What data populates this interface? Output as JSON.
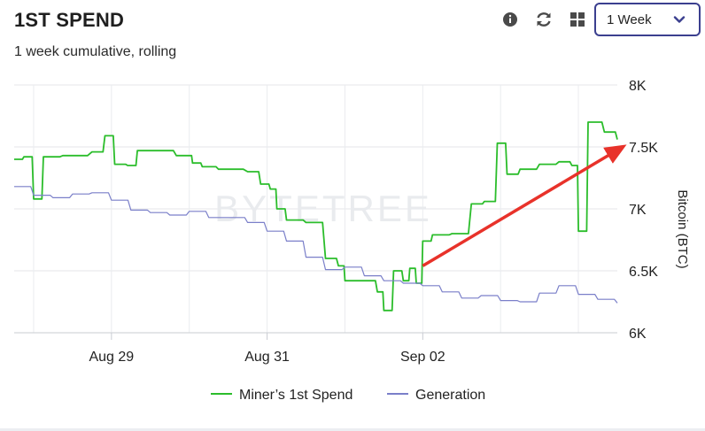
{
  "header": {
    "title": "1ST SPEND",
    "subtitle": "1 week cumulative, rolling",
    "range_select": {
      "value": "1 Week"
    },
    "icons": [
      "info-icon",
      "refresh-icon",
      "grid-icon",
      "chevron-down-icon"
    ],
    "accent_color": "#3b3f8f"
  },
  "watermark": "BYTETREE",
  "chart_data": {
    "type": "line",
    "x_ticks": [
      "Aug 29",
      "Aug 31",
      "Sep 02"
    ],
    "x_range": [
      "2023-08-27T18:00",
      "2023-09-04T12:00"
    ],
    "ylabel": "Bitcoin (BTC)",
    "ylim": [
      6000,
      8000
    ],
    "y_ticks": [
      6000,
      6500,
      7000,
      7500,
      8000
    ],
    "y_tick_labels": [
      "6K",
      "6.5K",
      "7K",
      "7.5K",
      "8K"
    ],
    "grid": true,
    "legend": "bottom-center",
    "series": [
      {
        "name": "Miner’s 1st Spend",
        "color": "#2bbd2b",
        "points": [
          [
            "2023-08-27T18:00",
            7400
          ],
          [
            "2023-08-27T21:00",
            7420
          ],
          [
            "2023-08-28T00:00",
            7080
          ],
          [
            "2023-08-28T03:00",
            7420
          ],
          [
            "2023-08-28T09:00",
            7430
          ],
          [
            "2023-08-28T18:00",
            7460
          ],
          [
            "2023-08-28T22:00",
            7590
          ],
          [
            "2023-08-29T01:00",
            7360
          ],
          [
            "2023-08-29T05:00",
            7350
          ],
          [
            "2023-08-29T08:00",
            7470
          ],
          [
            "2023-08-29T14:00",
            7470
          ],
          [
            "2023-08-29T20:00",
            7430
          ],
          [
            "2023-08-29T23:00",
            7430
          ],
          [
            "2023-08-30T01:00",
            7370
          ],
          [
            "2023-08-30T04:00",
            7340
          ],
          [
            "2023-08-30T09:00",
            7320
          ],
          [
            "2023-08-30T18:00",
            7300
          ],
          [
            "2023-08-30T22:00",
            7200
          ],
          [
            "2023-08-31T01:00",
            7160
          ],
          [
            "2023-08-31T03:00",
            7000
          ],
          [
            "2023-08-31T06:00",
            6910
          ],
          [
            "2023-08-31T12:00",
            6890
          ],
          [
            "2023-08-31T18:00",
            6600
          ],
          [
            "2023-08-31T22:00",
            6540
          ],
          [
            "2023-09-01T00:00",
            6420
          ],
          [
            "2023-09-01T06:00",
            6420
          ],
          [
            "2023-09-01T10:00",
            6330
          ],
          [
            "2023-09-01T12:00",
            6180
          ],
          [
            "2023-09-01T15:00",
            6500
          ],
          [
            "2023-09-01T18:00",
            6420
          ],
          [
            "2023-09-01T20:00",
            6520
          ],
          [
            "2023-09-01T22:00",
            6400
          ],
          [
            "2023-09-02T00:00",
            6740
          ],
          [
            "2023-09-02T03:00",
            6790
          ],
          [
            "2023-09-02T09:00",
            6800
          ],
          [
            "2023-09-02T15:00",
            7040
          ],
          [
            "2023-09-02T19:00",
            7060
          ],
          [
            "2023-09-02T23:00",
            7530
          ],
          [
            "2023-09-03T02:00",
            7280
          ],
          [
            "2023-09-03T06:00",
            7320
          ],
          [
            "2023-09-03T12:00",
            7360
          ],
          [
            "2023-09-03T18:00",
            7380
          ],
          [
            "2023-09-03T22:00",
            7350
          ],
          [
            "2023-09-04T00:00",
            6820
          ],
          [
            "2023-09-04T03:00",
            7700
          ],
          [
            "2023-09-04T08:00",
            7620
          ],
          [
            "2023-09-04T12:00",
            7560
          ]
        ]
      },
      {
        "name": "Generation",
        "color": "#7a7fc9",
        "points": [
          [
            "2023-08-27T18:00",
            7180
          ],
          [
            "2023-08-28T00:00",
            7110
          ],
          [
            "2023-08-28T06:00",
            7090
          ],
          [
            "2023-08-28T12:00",
            7120
          ],
          [
            "2023-08-28T18:00",
            7130
          ],
          [
            "2023-08-29T00:00",
            7070
          ],
          [
            "2023-08-29T06:00",
            6990
          ],
          [
            "2023-08-29T12:00",
            6970
          ],
          [
            "2023-08-29T18:00",
            6950
          ],
          [
            "2023-08-30T00:00",
            6980
          ],
          [
            "2023-08-30T06:00",
            6930
          ],
          [
            "2023-08-30T12:00",
            6930
          ],
          [
            "2023-08-30T18:00",
            6890
          ],
          [
            "2023-08-31T00:00",
            6820
          ],
          [
            "2023-08-31T06:00",
            6740
          ],
          [
            "2023-08-31T12:00",
            6610
          ],
          [
            "2023-08-31T18:00",
            6510
          ],
          [
            "2023-09-01T00:00",
            6530
          ],
          [
            "2023-09-01T06:00",
            6460
          ],
          [
            "2023-09-01T12:00",
            6420
          ],
          [
            "2023-09-01T18:00",
            6400
          ],
          [
            "2023-09-02T00:00",
            6380
          ],
          [
            "2023-09-02T06:00",
            6330
          ],
          [
            "2023-09-02T12:00",
            6280
          ],
          [
            "2023-09-02T18:00",
            6300
          ],
          [
            "2023-09-03T00:00",
            6260
          ],
          [
            "2023-09-03T06:00",
            6250
          ],
          [
            "2023-09-03T12:00",
            6320
          ],
          [
            "2023-09-03T18:00",
            6380
          ],
          [
            "2023-09-04T00:00",
            6310
          ],
          [
            "2023-09-04T06:00",
            6270
          ],
          [
            "2023-09-04T12:00",
            6240
          ]
        ]
      }
    ],
    "annotations": [
      {
        "type": "arrow",
        "color": "#e8322a",
        "from": [
          "2023-09-02T00:00",
          6540
        ],
        "to": [
          "2023-09-04T12:00",
          7500
        ]
      }
    ]
  }
}
